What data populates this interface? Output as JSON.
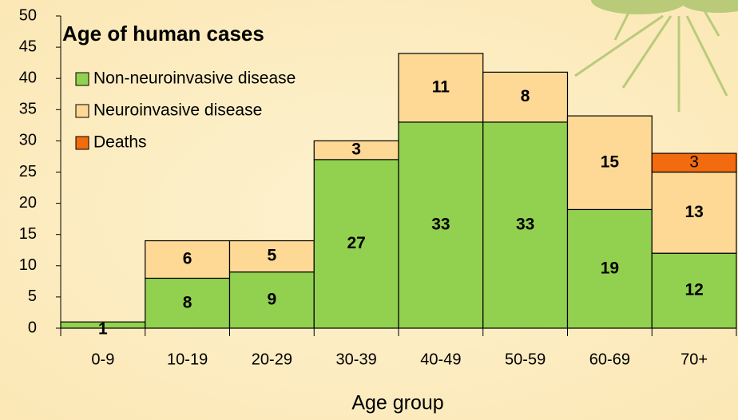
{
  "chart_data": {
    "type": "bar",
    "stacked": true,
    "title": "Age of human cases",
    "x_label": "Age group",
    "categories": [
      "0-9",
      "10-19",
      "20-29",
      "30-39",
      "40-49",
      "50-59",
      "60-69",
      "70+"
    ],
    "series": [
      {
        "name": "Non-neuroinvasive disease",
        "color": "#92d050",
        "values": [
          1,
          8,
          9,
          27,
          33,
          33,
          19,
          12
        ]
      },
      {
        "name": "Neuroinvasive disease",
        "color": "#fdd995",
        "values": [
          0,
          6,
          5,
          3,
          11,
          8,
          15,
          13
        ]
      },
      {
        "name": "Deaths",
        "color": "#f26b0f",
        "values": [
          0,
          0,
          0,
          0,
          0,
          0,
          0,
          3
        ]
      }
    ],
    "ylim": [
      0,
      50
    ],
    "yticks": [
      0,
      5,
      10,
      15,
      20,
      25,
      30,
      35,
      40,
      45,
      50
    ],
    "legend": "top-left"
  }
}
